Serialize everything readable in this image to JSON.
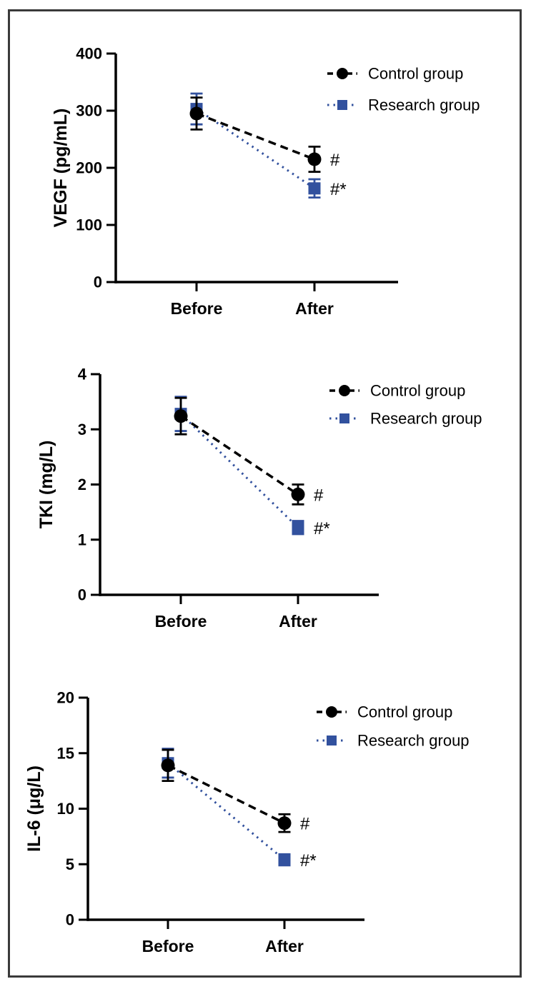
{
  "figure": {
    "background": "#ffffff",
    "border_color": "#3a3a3a",
    "accent_blue": "#32519E",
    "accent_black": "#000000"
  },
  "chart_data": [
    {
      "type": "line",
      "title": "",
      "ylabel": "VEGF (pg/mL)",
      "xlabel": "",
      "categories": [
        "Before",
        "After"
      ],
      "ylim": [
        0,
        400
      ],
      "yticks": [
        0,
        100,
        200,
        300,
        400
      ],
      "grid": false,
      "legend_position": "top-right",
      "series": [
        {
          "name": "Control group",
          "color": "#000000",
          "marker": "circle",
          "line_style": "dashed",
          "values": [
            295,
            215
          ],
          "errors": [
            28,
            22
          ],
          "annotations": [
            "",
            "#"
          ]
        },
        {
          "name": "Research group",
          "color": "#32519E",
          "marker": "square",
          "line_style": "dotted",
          "values": [
            303,
            164
          ],
          "errors": [
            27,
            16
          ],
          "annotations": [
            "",
            "#*"
          ]
        }
      ]
    },
    {
      "type": "line",
      "title": "",
      "ylabel": "TKI (mg/L)",
      "xlabel": "",
      "categories": [
        "Before",
        "After"
      ],
      "ylim": [
        0,
        4
      ],
      "yticks": [
        0,
        1,
        2,
        3,
        4
      ],
      "grid": false,
      "legend_position": "top-right",
      "series": [
        {
          "name": "Control group",
          "color": "#000000",
          "marker": "circle",
          "line_style": "dashed",
          "values": [
            3.24,
            1.82
          ],
          "errors": [
            0.33,
            0.18
          ],
          "annotations": [
            "",
            "#"
          ]
        },
        {
          "name": "Research group",
          "color": "#32519E",
          "marker": "square",
          "line_style": "dotted",
          "values": [
            3.28,
            1.22
          ],
          "errors": [
            0.31,
            0.12
          ],
          "annotations": [
            "",
            "#*"
          ]
        }
      ]
    },
    {
      "type": "line",
      "title": "",
      "ylabel": "IL-6 (μg/L)",
      "xlabel": "",
      "categories": [
        "Before",
        "After"
      ],
      "ylim": [
        0,
        20
      ],
      "yticks": [
        0,
        5,
        10,
        15,
        20
      ],
      "grid": false,
      "legend_position": "top-right",
      "series": [
        {
          "name": "Control group",
          "color": "#000000",
          "marker": "circle",
          "line_style": "dashed",
          "values": [
            13.9,
            8.7
          ],
          "errors": [
            1.4,
            0.8
          ],
          "annotations": [
            "",
            "#"
          ]
        },
        {
          "name": "Research group",
          "color": "#32519E",
          "marker": "square",
          "line_style": "dotted",
          "values": [
            14.1,
            5.4
          ],
          "errors": [
            1.3,
            0.5
          ],
          "annotations": [
            "",
            "#*"
          ]
        }
      ]
    }
  ]
}
